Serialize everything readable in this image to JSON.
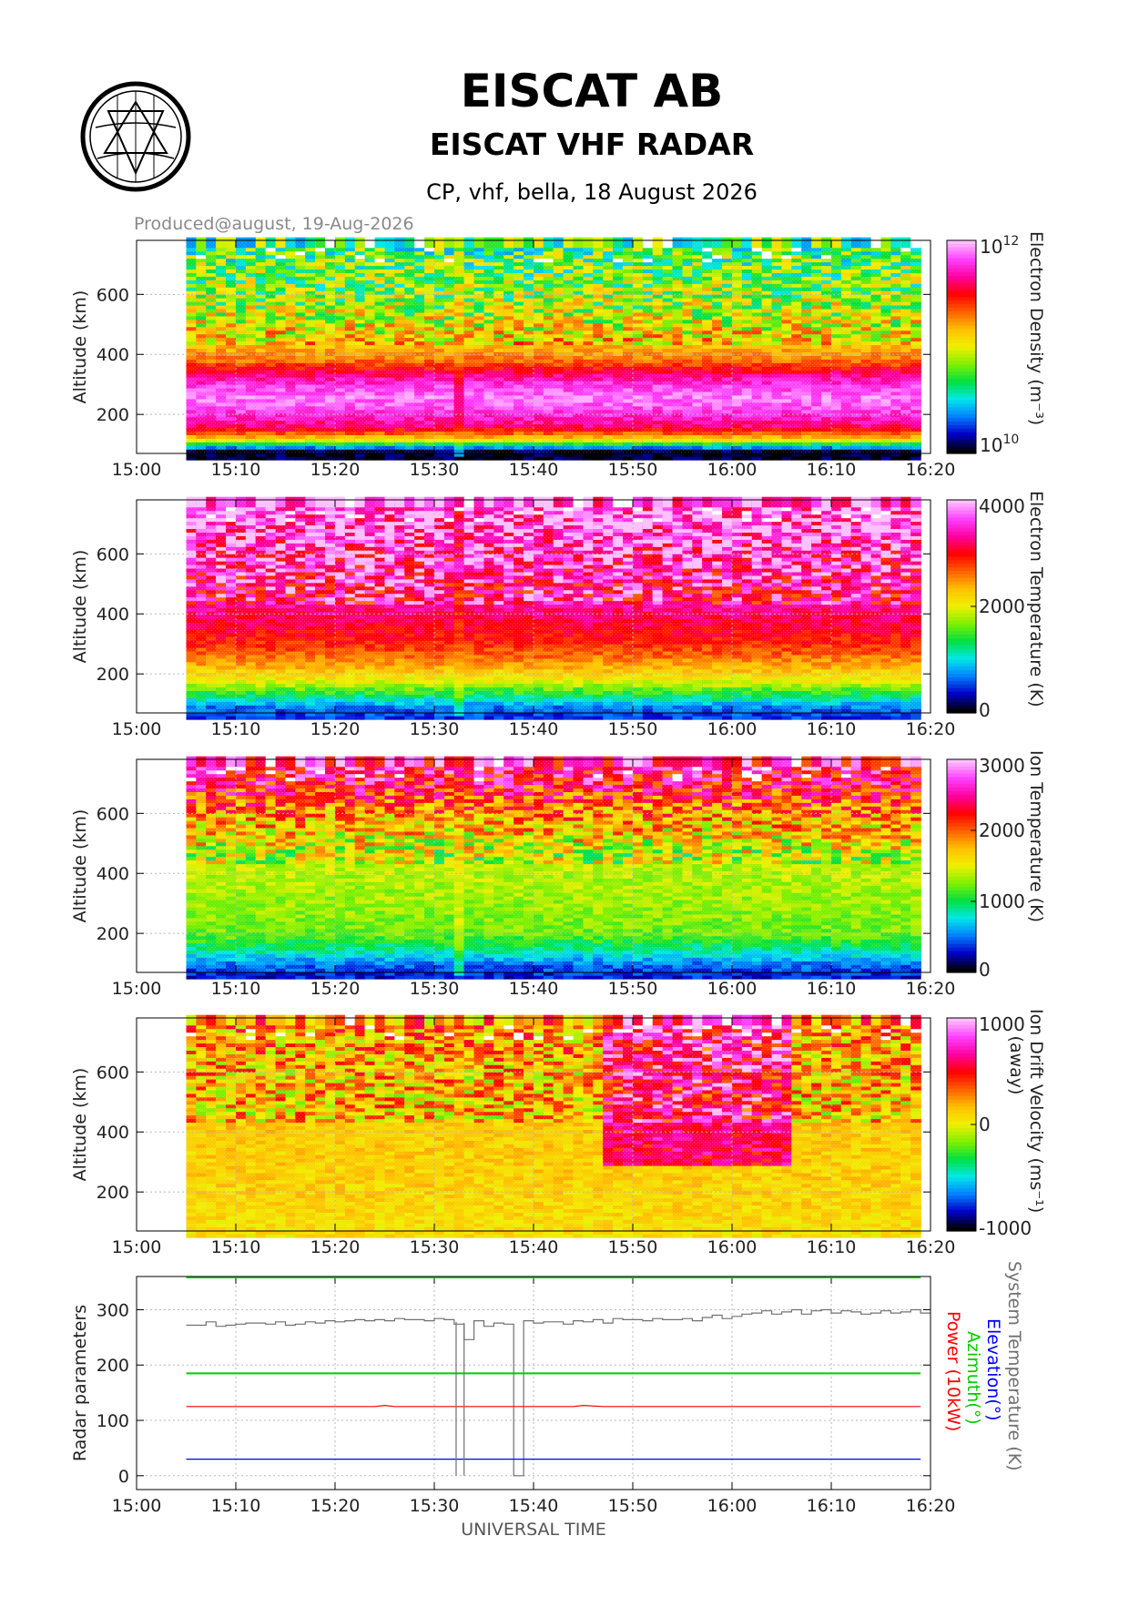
{
  "header": {
    "organization": "EISCAT AB",
    "radar": "EISCAT VHF RADAR",
    "experiment": "CP, vhf, bella, 18 August 2026",
    "produced": "Produced@august, 19-Aug-2026",
    "logo": "eiscat-logo"
  },
  "colors": {
    "map": [
      "#000000",
      "#0000c8",
      "#0080ff",
      "#00e8e8",
      "#00e040",
      "#80f000",
      "#f0f000",
      "#ffc000",
      "#ff6000",
      "#ff0000",
      "#ff00a0",
      "#ff40ff",
      "#ffc0ff"
    ],
    "system_temperature": "#707070",
    "elevation": "#0000ff",
    "azimuth": "#00cc00",
    "power": "#ff0000"
  },
  "chart_data": [
    {
      "type": "heatmap",
      "parameter": "electron_density",
      "ylabel": "Altitude (km)",
      "yticks": [
        200,
        400,
        600
      ],
      "ylim": [
        70,
        780
      ],
      "x_start": "15:05",
      "x_end": "16:19",
      "xticks": [
        "15:00",
        "15:10",
        "15:20",
        "15:30",
        "15:40",
        "15:50",
        "16:00",
        "16:10",
        "16:20"
      ],
      "colorbar": {
        "label": "Electron Density (m⁻³)",
        "scale": "log",
        "ticks": [
          {
            "base": "10",
            "exp": "12"
          },
          {
            "base": "10",
            "exp": "10"
          }
        ],
        "range": [
          10000000000.0,
          1000000000000.0
        ]
      },
      "profile": [
        [
          100,
          0.02
        ],
        [
          140,
          0.55
        ],
        [
          180,
          0.8
        ],
        [
          220,
          0.88
        ],
        [
          250,
          0.93
        ],
        [
          280,
          0.95
        ],
        [
          320,
          0.9
        ],
        [
          360,
          0.8
        ],
        [
          400,
          0.66
        ],
        [
          450,
          0.58
        ],
        [
          500,
          0.52
        ],
        [
          560,
          0.47
        ],
        [
          620,
          0.43
        ],
        [
          700,
          0.4
        ],
        [
          780,
          0.36
        ]
      ]
    },
    {
      "type": "heatmap",
      "parameter": "electron_temperature",
      "ylabel": "Altitude (km)",
      "yticks": [
        200,
        400,
        600
      ],
      "ylim": [
        70,
        780
      ],
      "x_start": "15:05",
      "x_end": "16:19",
      "xticks": [
        "15:00",
        "15:10",
        "15:20",
        "15:30",
        "15:40",
        "15:50",
        "16:00",
        "16:10",
        "16:20"
      ],
      "colorbar": {
        "label": "Electron Temperature (K)",
        "scale": "linear",
        "ticks": [
          "4000",
          "2000",
          "0"
        ],
        "range": [
          0,
          4000
        ]
      },
      "profile": [
        [
          80,
          0.12
        ],
        [
          110,
          0.16
        ],
        [
          150,
          0.32
        ],
        [
          200,
          0.5
        ],
        [
          260,
          0.62
        ],
        [
          320,
          0.72
        ],
        [
          380,
          0.77
        ],
        [
          440,
          0.82
        ],
        [
          520,
          0.85
        ],
        [
          600,
          0.88
        ],
        [
          700,
          0.93
        ],
        [
          780,
          0.95
        ]
      ]
    },
    {
      "type": "heatmap",
      "parameter": "ion_temperature",
      "ylabel": "Altitude (km)",
      "yticks": [
        200,
        400,
        600
      ],
      "ylim": [
        70,
        780
      ],
      "x_start": "15:05",
      "x_end": "16:19",
      "xticks": [
        "15:00",
        "15:10",
        "15:20",
        "15:30",
        "15:40",
        "15:50",
        "16:00",
        "16:10",
        "16:20"
      ],
      "colorbar": {
        "label": "Ion Temperature (K)",
        "scale": "linear",
        "ticks": [
          "3000",
          "2000",
          "1000",
          "0"
        ],
        "range": [
          0,
          3000
        ]
      },
      "profile": [
        [
          80,
          0.1
        ],
        [
          120,
          0.16
        ],
        [
          170,
          0.3
        ],
        [
          220,
          0.4
        ],
        [
          300,
          0.43
        ],
        [
          400,
          0.45
        ],
        [
          480,
          0.47
        ],
        [
          560,
          0.55
        ],
        [
          640,
          0.65
        ],
        [
          720,
          0.78
        ],
        [
          780,
          0.85
        ]
      ]
    },
    {
      "type": "heatmap",
      "parameter": "ion_drift_velocity",
      "ylabel": "Altitude (km)",
      "yticks": [
        200,
        400,
        600
      ],
      "ylim": [
        70,
        780
      ],
      "x_start": "15:05",
      "x_end": "16:19",
      "xticks": [
        "15:00",
        "15:10",
        "15:20",
        "15:30",
        "15:40",
        "15:50",
        "16:00",
        "16:10",
        "16:20"
      ],
      "colorbar": {
        "label": "Ion Drift Velocity (ms⁻¹)",
        "sublabel": "(away)",
        "scale": "linear",
        "ticks": [
          "1000",
          "0",
          "-1000"
        ],
        "range": [
          -1000,
          1000
        ]
      },
      "profile": [
        [
          80,
          0.53
        ],
        [
          200,
          0.55
        ],
        [
          400,
          0.56
        ],
        [
          600,
          0.58
        ],
        [
          780,
          0.62
        ]
      ]
    },
    {
      "type": "line",
      "ylabel": "Radar parameters",
      "xlabel": "UNIVERSAL TIME",
      "ylim": [
        -25,
        360
      ],
      "yticks": [
        0,
        100,
        200,
        300
      ],
      "xticks": [
        "15:00",
        "15:10",
        "15:20",
        "15:30",
        "15:40",
        "15:50",
        "16:00",
        "16:10",
        "16:20"
      ],
      "legend": [
        "System Temperature (K)",
        "Elevation(°)",
        "Azimuth(°)",
        "Power (10kW)"
      ],
      "series": [
        {
          "name": "System Temperature (K)",
          "x": [
            5,
            6,
            7,
            8,
            9,
            10,
            11,
            12,
            13,
            14,
            15,
            16,
            17,
            18,
            19,
            20,
            21,
            22,
            23,
            24,
            25,
            26,
            27,
            28,
            29,
            30,
            31,
            32,
            33,
            34,
            35,
            36,
            37,
            38,
            39,
            40,
            41,
            42,
            43,
            44,
            45,
            46,
            47,
            48,
            49,
            50,
            51,
            52,
            53,
            54,
            55,
            56,
            57,
            58,
            59,
            60,
            61,
            62,
            63,
            64,
            65,
            66,
            67,
            68,
            69,
            70,
            71,
            72,
            73,
            74,
            75,
            76,
            77,
            78,
            79
          ],
          "y": [
            272,
            272,
            278,
            270,
            272,
            274,
            276,
            276,
            274,
            278,
            272,
            274,
            278,
            276,
            280,
            278,
            280,
            282,
            280,
            282,
            280,
            284,
            282,
            282,
            280,
            284,
            282,
            274,
            246,
            280,
            270,
            276,
            274,
            0,
            280,
            276,
            278,
            278,
            274,
            280,
            278,
            282,
            276,
            284,
            282,
            282,
            280,
            284,
            282,
            282,
            284,
            280,
            286,
            290,
            284,
            288,
            292,
            294,
            298,
            292,
            296,
            300,
            292,
            298,
            300,
            294,
            298,
            296,
            292,
            294,
            298,
            294,
            296,
            300,
            294
          ]
        },
        {
          "name": "Elevation(°)",
          "x": [
            5,
            79
          ],
          "y": [
            30,
            30
          ]
        },
        {
          "name": "Azimuth(°)",
          "x": [
            5,
            79
          ],
          "y": [
            185,
            185
          ]
        },
        {
          "name": "Power (10kW)",
          "x": [
            5,
            24,
            25,
            26,
            44,
            45,
            47,
            79
          ],
          "y": [
            125,
            125,
            127,
            125,
            125,
            127,
            125,
            125
          ]
        }
      ]
    }
  ]
}
